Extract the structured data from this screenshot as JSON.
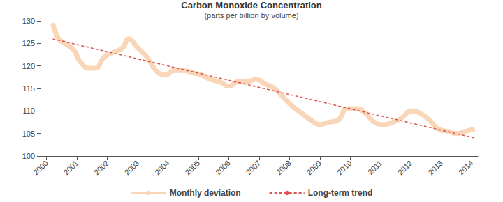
{
  "chart_data": {
    "type": "line",
    "title": "Carbon Monoxide Concentration",
    "subtitle": "(parts per billion by volume)",
    "xlim": [
      1999.8,
      2014.2
    ],
    "xticks": [
      2000,
      2001,
      2002,
      2003,
      2004,
      2005,
      2006,
      2007,
      2008,
      2009,
      2010,
      2011,
      2012,
      2013,
      2014
    ],
    "ylim": [
      100,
      130
    ],
    "yticks": [
      100,
      105,
      110,
      115,
      120,
      125,
      130
    ],
    "grid": false,
    "legend": "bottom",
    "series": [
      {
        "name": "Monthly deviation",
        "color": "#f9d6b8",
        "line_style": "solid",
        "marker": "none",
        "x": [
          2000.2,
          2000.4,
          2000.6,
          2000.9,
          2001.1,
          2001.4,
          2001.6,
          2001.9,
          2002.2,
          2002.5,
          2002.7,
          2003.0,
          2003.3,
          2003.6,
          2003.9,
          2004.2,
          2004.5,
          2004.8,
          2005.1,
          2005.4,
          2005.7,
          2006.0,
          2006.3,
          2006.6,
          2006.9,
          2007.2,
          2007.5,
          2007.8,
          2008.1,
          2008.4,
          2008.7,
          2009.0,
          2009.3,
          2009.6,
          2009.9,
          2010.2,
          2010.5,
          2010.8,
          2011.1,
          2011.4,
          2011.7,
          2012.0,
          2012.3,
          2012.6,
          2012.9,
          2013.2,
          2013.5,
          2013.8,
          2014.1
        ],
        "values": [
          129.5,
          126,
          125,
          123.5,
          121,
          119.5,
          119.5,
          122,
          123,
          124,
          126,
          124,
          122,
          119,
          118,
          119,
          119,
          118.5,
          118,
          117,
          116.5,
          115.5,
          116.5,
          116.5,
          117,
          116,
          115,
          113,
          111,
          109.5,
          108,
          107,
          107.5,
          108,
          110.5,
          110.5,
          109.5,
          107.5,
          107,
          107.5,
          108.5,
          110,
          109.5,
          108,
          106,
          105.5,
          105,
          105.5,
          106
        ]
      },
      {
        "name": "Long-term trend",
        "color": "#d9534f",
        "line_style": "dashed",
        "marker": "none",
        "x": [
          2000.2,
          2014.1
        ],
        "values": [
          126,
          104
        ]
      }
    ]
  }
}
